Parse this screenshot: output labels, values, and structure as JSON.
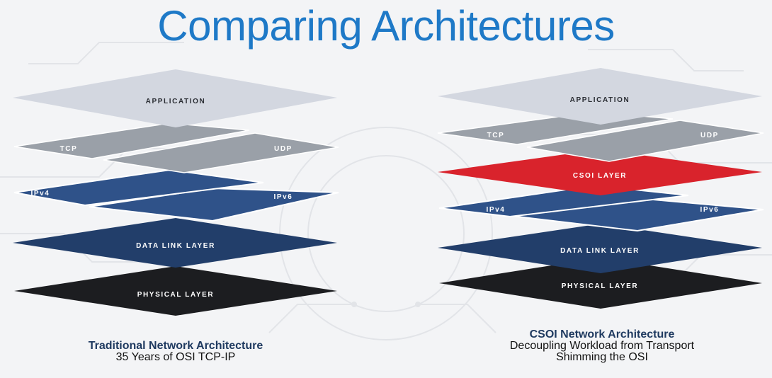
{
  "title": "Comparing Architectures",
  "colors": {
    "title": "#1e79c7",
    "application": "#d3d7e0",
    "transport": "#9aa0a8",
    "network": "#2f5289",
    "datalink": "#223e6a",
    "physical": "#1c1d20",
    "csoi": "#d9232c"
  },
  "traditional": {
    "layers": {
      "application": "APPLICATION",
      "tcp": "TCP",
      "udp": "UDP",
      "ipv4": "IPv4",
      "ipv6": "IPv6",
      "datalink": "DATA LINK LAYER",
      "physical": "PHYSICAL LAYER"
    },
    "caption_title": "Traditional Network Architecture",
    "caption_subtitle": "35 Years of OSI TCP-IP"
  },
  "csoi": {
    "layers": {
      "application": "APPLICATION",
      "tcp": "TCP",
      "udp": "UDP",
      "csoi": "CSOI LAYER",
      "ipv4": "IPv4",
      "ipv6": "IPv6",
      "datalink": "DATA LINK LAYER",
      "physical": "PHYSICAL LAYER"
    },
    "caption_title": "CSOI Network Architecture",
    "caption_line1": "Decoupling Workload from Transport",
    "caption_line2": "Shimming the OSI"
  }
}
